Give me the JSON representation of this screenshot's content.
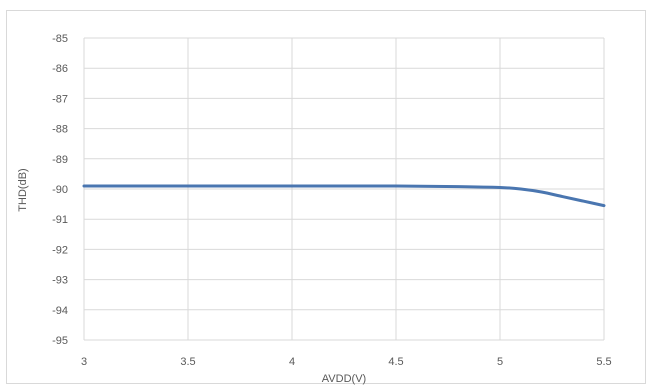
{
  "chart_data": {
    "type": "line",
    "title": "",
    "xlabel": "AVDD(V)",
    "ylabel": "THD(dB)",
    "xlim": [
      3,
      5.5
    ],
    "ylim": [
      -95,
      -85
    ],
    "x_ticks": [
      "3",
      "3.5",
      "4",
      "4.5",
      "5",
      "5.5"
    ],
    "y_ticks": [
      "-85",
      "-86",
      "-87",
      "-88",
      "-89",
      "-90",
      "-91",
      "-92",
      "-93",
      "-94",
      "-95"
    ],
    "grid": true,
    "series": [
      {
        "color": "#4a76b0",
        "x": [
          3.0,
          3.5,
          4.0,
          4.5,
          4.8,
          5.0,
          5.1,
          5.2,
          5.3,
          5.4,
          5.5
        ],
        "y": [
          -89.9,
          -89.9,
          -89.9,
          -89.9,
          -89.92,
          -89.95,
          -90.0,
          -90.1,
          -90.25,
          -90.4,
          -90.55
        ]
      }
    ]
  }
}
